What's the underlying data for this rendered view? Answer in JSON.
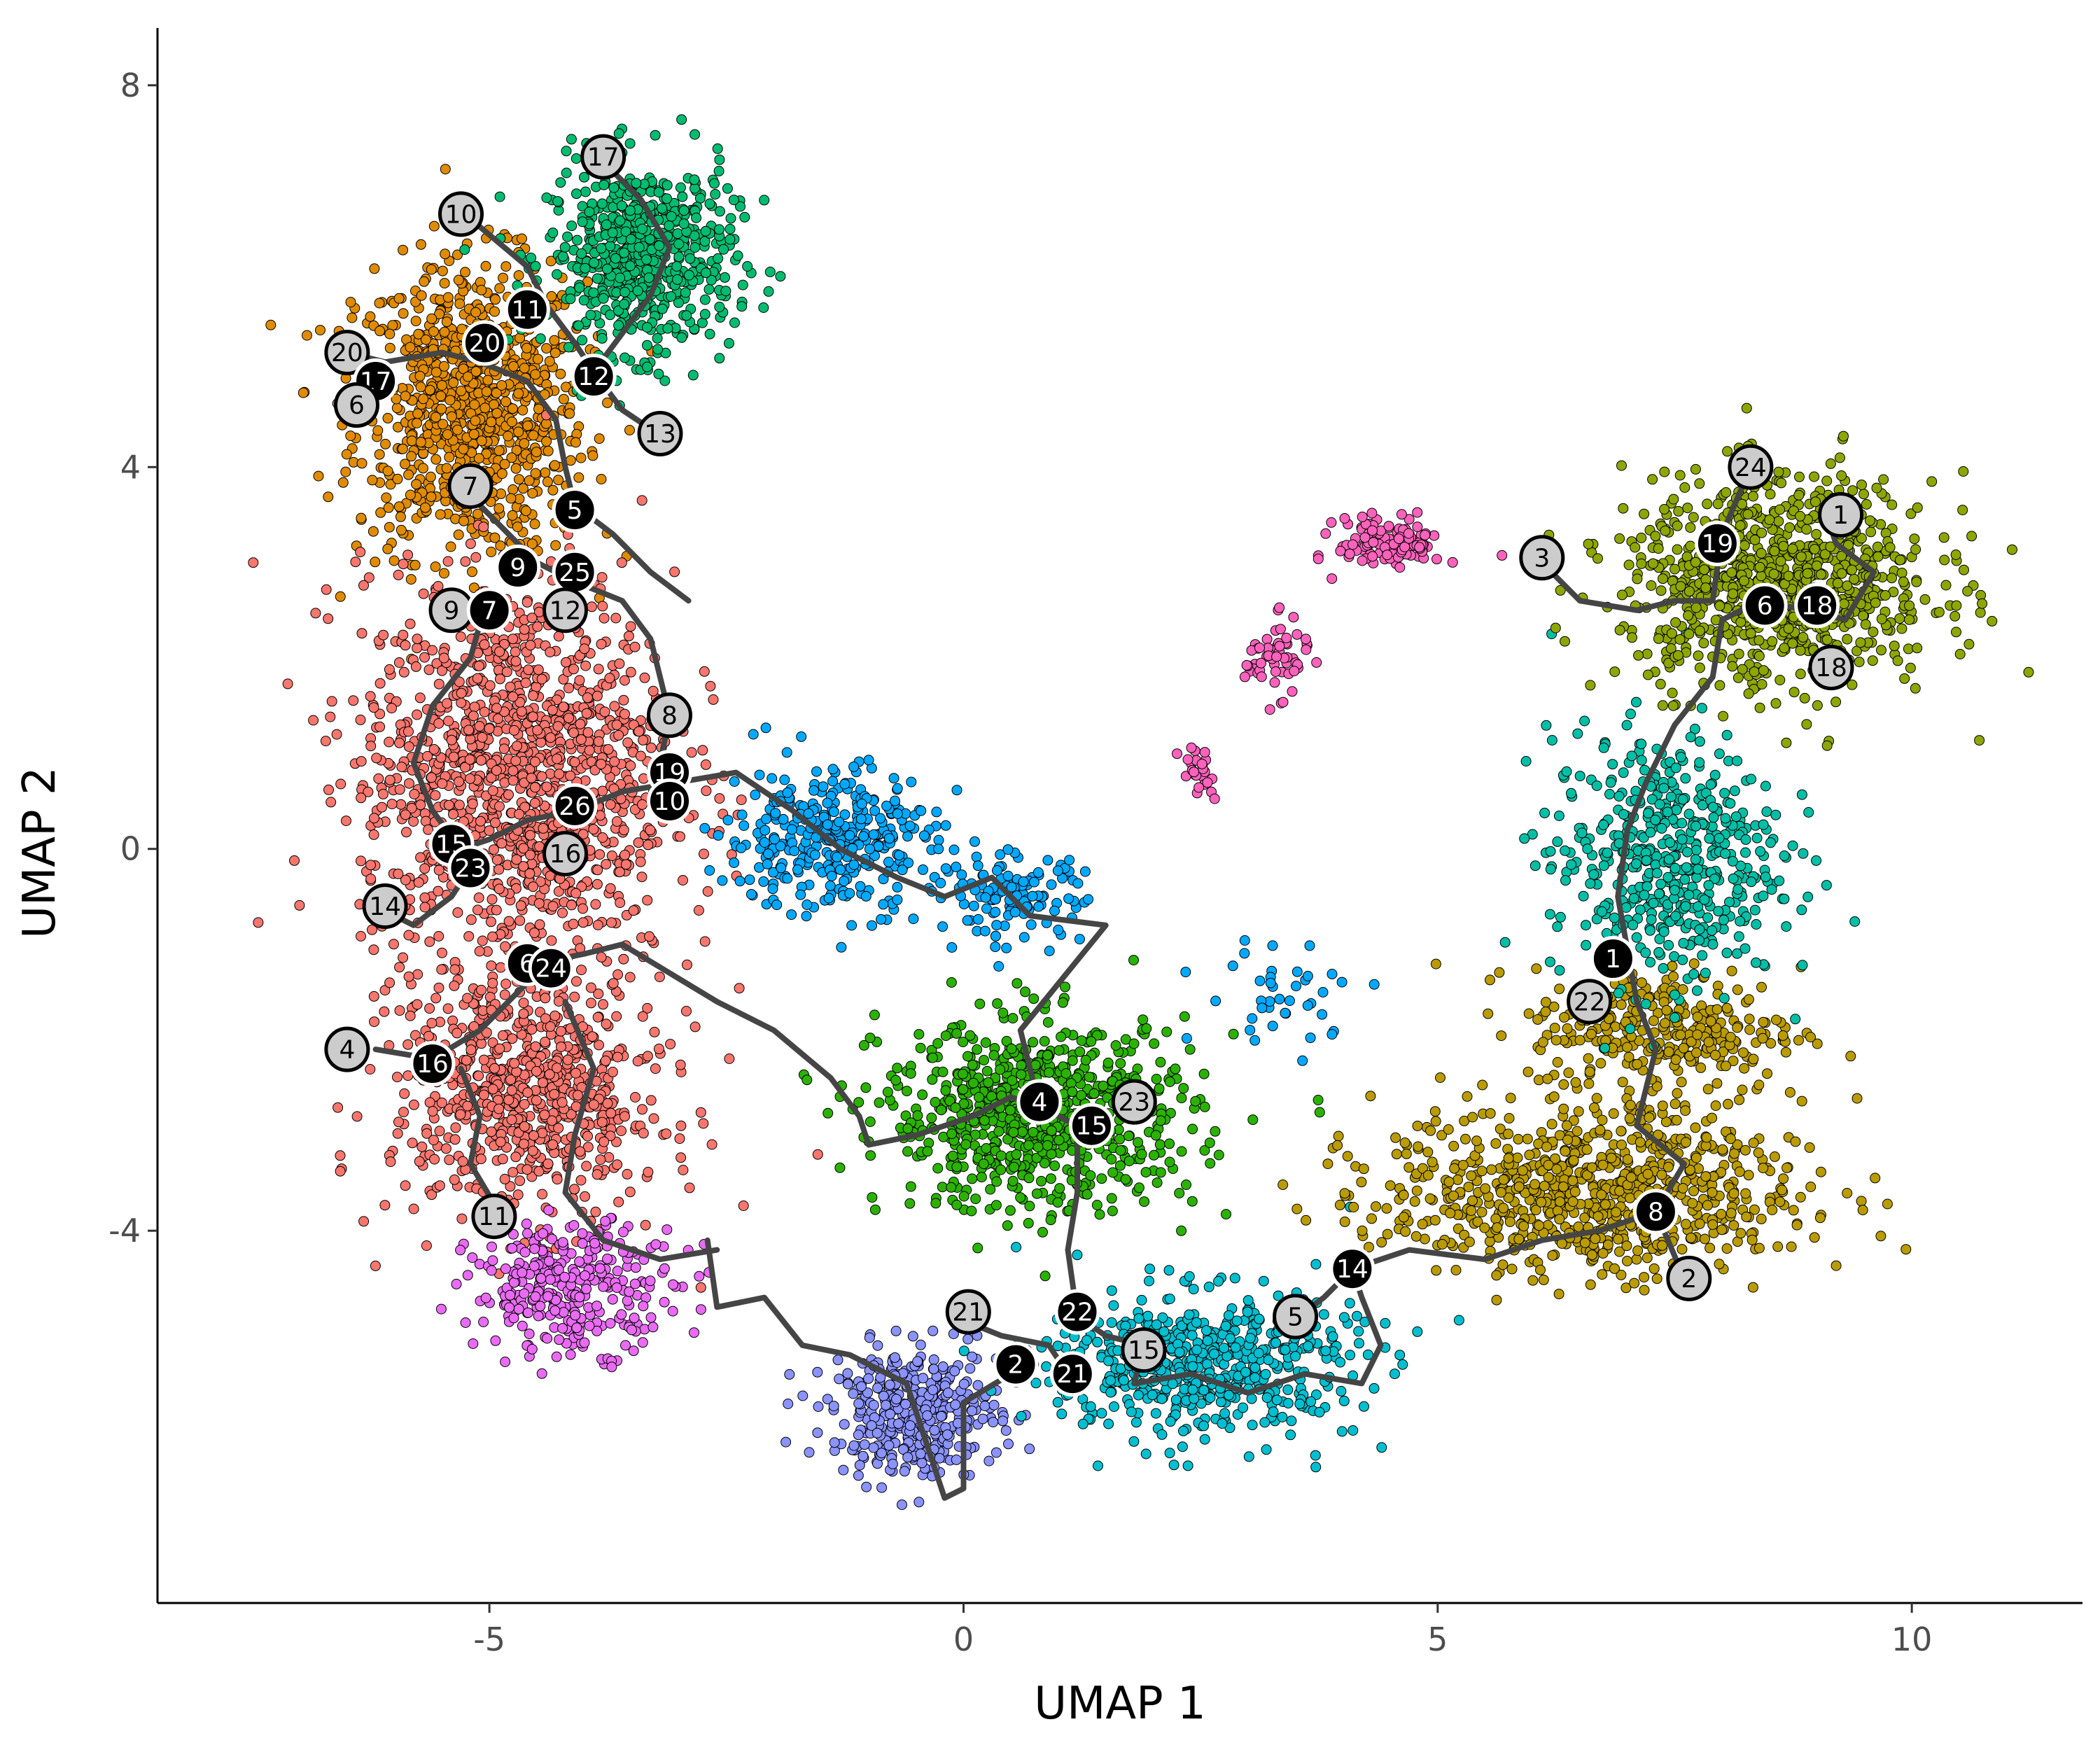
{
  "chart_data": {
    "type": "scatter",
    "title": "",
    "xlabel": "UMAP 1",
    "ylabel": "UMAP 2",
    "xlim": [
      -8.5,
      11.8
    ],
    "ylim": [
      -7.9,
      8.6
    ],
    "x_ticks": [
      -5,
      0,
      5,
      10
    ],
    "x_tick_labels": [
      "-5",
      "0",
      "5",
      "10"
    ],
    "y_ticks": [
      -4,
      0,
      4,
      8
    ],
    "y_tick_labels": [
      "-4",
      "0",
      "4",
      "8"
    ],
    "grid": false,
    "legend": "none",
    "clusters": [
      {
        "color": "#E08B00",
        "center": [
          -5.2,
          4.6
        ],
        "spread": [
          1.1,
          1.4
        ],
        "n": 900
      },
      {
        "color": "#00BC70",
        "center": [
          -3.4,
          6.2
        ],
        "spread": [
          0.9,
          0.9
        ],
        "n": 600
      },
      {
        "color": "#F8766D",
        "center": [
          -4.7,
          0.8
        ],
        "spread": [
          1.5,
          1.9
        ],
        "n": 1300
      },
      {
        "color": "#F8766D",
        "center": [
          -4.6,
          -2.6
        ],
        "spread": [
          1.3,
          1.2
        ],
        "n": 700
      },
      {
        "color": "#E96BF3",
        "center": [
          -4.1,
          -4.6
        ],
        "spread": [
          1.0,
          0.6
        ],
        "n": 300
      },
      {
        "color": "#00A9FF",
        "center": [
          -1.4,
          0.1
        ],
        "spread": [
          1.0,
          0.7
        ],
        "n": 350
      },
      {
        "color": "#00A9FF",
        "center": [
          0.5,
          -0.5
        ],
        "spread": [
          0.7,
          0.4
        ],
        "n": 120
      },
      {
        "color": "#00A9FF",
        "center": [
          3.4,
          -1.5
        ],
        "spread": [
          0.8,
          0.5
        ],
        "n": 40
      },
      {
        "color": "#2BB200",
        "center": [
          0.8,
          -2.8
        ],
        "spread": [
          1.5,
          0.9
        ],
        "n": 750
      },
      {
        "color": "#8B93FF",
        "center": [
          -0.5,
          -5.9
        ],
        "spread": [
          0.8,
          0.6
        ],
        "n": 380
      },
      {
        "color": "#00BFD0",
        "center": [
          2.5,
          -5.4
        ],
        "spread": [
          1.5,
          0.7
        ],
        "n": 550
      },
      {
        "color": "#BA9B00",
        "center": [
          6.6,
          -3.6
        ],
        "spread": [
          2.0,
          0.8
        ],
        "n": 800
      },
      {
        "color": "#BA9B00",
        "center": [
          7.4,
          -1.9
        ],
        "spread": [
          1.3,
          0.6
        ],
        "n": 300
      },
      {
        "color": "#00BFA6",
        "center": [
          7.4,
          -0.1
        ],
        "spread": [
          1.1,
          1.2
        ],
        "n": 500
      },
      {
        "color": "#8EA600",
        "center": [
          8.6,
          2.8
        ],
        "spread": [
          1.5,
          1.0
        ],
        "n": 900
      },
      {
        "color": "#FF62BC",
        "center": [
          4.5,
          3.2
        ],
        "spread": [
          0.5,
          0.25
        ],
        "n": 120
      },
      {
        "color": "#FF62BC",
        "center": [
          3.3,
          2.0
        ],
        "spread": [
          0.3,
          0.35
        ],
        "n": 60
      },
      {
        "color": "#FF62BC",
        "center": [
          2.5,
          0.8
        ],
        "spread": [
          0.2,
          0.3
        ],
        "n": 25
      }
    ],
    "trajectory": [
      [
        [
          -5.2,
          6.6
        ],
        [
          -4.6,
          6.1
        ],
        [
          -4.4,
          5.7
        ],
        [
          -4.1,
          5.3
        ],
        [
          -3.9,
          5.0
        ],
        [
          -3.6,
          4.6
        ],
        [
          -3.3,
          4.4
        ]
      ],
      [
        [
          -3.8,
          7.2
        ],
        [
          -3.4,
          6.8
        ],
        [
          -3.1,
          6.3
        ],
        [
          -3.3,
          5.8
        ],
        [
          -3.6,
          5.4
        ],
        [
          -3.9,
          5.0
        ]
      ],
      [
        [
          -6.5,
          5.2
        ],
        [
          -6.1,
          5.1
        ],
        [
          -5.5,
          5.2
        ],
        [
          -5.1,
          5.1
        ],
        [
          -4.6,
          4.9
        ],
        [
          -4.3,
          4.5
        ],
        [
          -4.2,
          4.0
        ],
        [
          -4.1,
          3.6
        ]
      ],
      [
        [
          -5.3,
          3.8
        ],
        [
          -4.9,
          3.4
        ],
        [
          -4.5,
          3.0
        ],
        [
          -4.1,
          2.8
        ],
        [
          -3.6,
          2.6
        ],
        [
          -3.3,
          2.2
        ],
        [
          -3.2,
          1.8
        ],
        [
          -3.1,
          1.4
        ],
        [
          -3.2,
          0.9
        ],
        [
          -3.0,
          0.6
        ]
      ],
      [
        [
          -4.1,
          3.6
        ],
        [
          -3.7,
          3.3
        ],
        [
          -3.3,
          2.9
        ],
        [
          -2.9,
          2.6
        ]
      ],
      [
        [
          -5.0,
          2.7
        ],
        [
          -5.2,
          2.0
        ],
        [
          -5.6,
          1.5
        ],
        [
          -5.8,
          0.9
        ],
        [
          -5.6,
          0.4
        ],
        [
          -5.3,
          0.0
        ]
      ],
      [
        [
          -6.2,
          -0.6
        ],
        [
          -5.8,
          -0.8
        ],
        [
          -5.4,
          -0.5
        ],
        [
          -5.2,
          -0.2
        ]
      ],
      [
        [
          -5.3,
          0.0
        ],
        [
          -5.0,
          0.1
        ],
        [
          -4.6,
          0.3
        ],
        [
          -4.1,
          0.4
        ],
        [
          -3.6,
          0.6
        ],
        [
          -3.0,
          0.7
        ],
        [
          -2.4,
          0.8
        ],
        [
          -1.8,
          0.4
        ],
        [
          -1.3,
          0.0
        ],
        [
          -0.7,
          -0.3
        ],
        [
          -0.2,
          -0.5
        ],
        [
          0.3,
          -0.3
        ],
        [
          0.7,
          -0.7
        ],
        [
          1.5,
          -0.8
        ],
        [
          0.6,
          -1.9
        ],
        [
          0.8,
          -2.7
        ]
      ],
      [
        [
          -4.5,
          -1.2
        ],
        [
          -4.0,
          -1.1
        ],
        [
          -3.6,
          -1.0
        ],
        [
          -3.1,
          -1.3
        ],
        [
          -2.6,
          -1.6
        ],
        [
          -2.0,
          -1.9
        ],
        [
          -1.4,
          -2.4
        ],
        [
          -1.1,
          -2.8
        ],
        [
          -1.0,
          -3.1
        ],
        [
          -0.5,
          -3.0
        ],
        [
          0.1,
          -2.8
        ],
        [
          0.5,
          -2.6
        ],
        [
          0.8,
          -2.7
        ]
      ],
      [
        [
          -4.5,
          -1.3
        ],
        [
          -4.8,
          -1.6
        ],
        [
          -5.1,
          -1.9
        ],
        [
          -5.6,
          -2.2
        ],
        [
          -6.2,
          -2.1
        ]
      ],
      [
        [
          -4.2,
          -1.6
        ],
        [
          -3.9,
          -2.3
        ],
        [
          -4.1,
          -3.0
        ],
        [
          -4.2,
          -3.6
        ],
        [
          -3.8,
          -4.1
        ],
        [
          -3.2,
          -4.3
        ],
        [
          -2.6,
          -4.2
        ]
      ],
      [
        [
          -5.3,
          -2.3
        ],
        [
          -5.1,
          -2.8
        ],
        [
          -5.2,
          -3.3
        ],
        [
          -4.9,
          -3.8
        ]
      ],
      [
        [
          -2.7,
          -4.1
        ],
        [
          -2.6,
          -4.8
        ],
        [
          -2.1,
          -4.7
        ],
        [
          -1.7,
          -5.2
        ],
        [
          -1.2,
          -5.3
        ],
        [
          -0.6,
          -5.6
        ],
        [
          -0.4,
          -6.2
        ],
        [
          -0.2,
          -6.8
        ],
        [
          0.0,
          -6.7
        ],
        [
          0.0,
          -5.8
        ],
        [
          0.5,
          -5.5
        ]
      ],
      [
        [
          -0.1,
          -4.9
        ],
        [
          0.4,
          -5.1
        ],
        [
          0.9,
          -5.2
        ],
        [
          1.1,
          -5.5
        ]
      ],
      [
        [
          0.8,
          -2.7
        ],
        [
          1.2,
          -2.9
        ],
        [
          1.2,
          -3.6
        ],
        [
          1.1,
          -4.2
        ],
        [
          1.2,
          -4.9
        ],
        [
          1.5,
          -5.1
        ],
        [
          1.9,
          -5.2
        ],
        [
          1.8,
          -5.6
        ],
        [
          2.4,
          -5.5
        ],
        [
          3.0,
          -5.7
        ],
        [
          3.6,
          -5.5
        ],
        [
          4.2,
          -5.6
        ],
        [
          4.4,
          -5.2
        ],
        [
          4.2,
          -4.7
        ],
        [
          4.1,
          -4.4
        ],
        [
          4.7,
          -4.2
        ],
        [
          5.5,
          -4.3
        ],
        [
          6.1,
          -4.1
        ],
        [
          6.7,
          -4.0
        ],
        [
          7.3,
          -3.8
        ],
        [
          7.6,
          -3.3
        ],
        [
          7.1,
          -2.9
        ],
        [
          7.3,
          -2.1
        ],
        [
          7.1,
          -1.6
        ],
        [
          6.9,
          -0.5
        ],
        [
          7.0,
          0.2
        ],
        [
          7.2,
          0.7
        ],
        [
          7.5,
          1.3
        ],
        [
          7.9,
          1.8
        ],
        [
          8.0,
          2.4
        ],
        [
          8.4,
          2.6
        ],
        [
          8.9,
          2.5
        ],
        [
          9.3,
          2.4
        ],
        [
          9.6,
          2.9
        ],
        [
          9.2,
          3.2
        ],
        [
          9.1,
          3.5
        ]
      ],
      [
        [
          6.1,
          3.0
        ],
        [
          6.5,
          2.6
        ],
        [
          7.1,
          2.5
        ],
        [
          7.5,
          2.6
        ],
        [
          7.9,
          2.6
        ],
        [
          8.0,
          3.3
        ],
        [
          8.3,
          4.0
        ]
      ],
      [
        [
          3.4,
          -5.0
        ],
        [
          3.8,
          -4.7
        ],
        [
          4.1,
          -4.4
        ]
      ],
      [
        [
          7.3,
          -3.8
        ],
        [
          7.6,
          -4.5
        ]
      ]
    ],
    "trajectory_color": "#454545",
    "nodes": [
      {
        "label": "17",
        "x": -3.8,
        "y": 7.25,
        "fill": "#cccccc",
        "text": "#000000"
      },
      {
        "label": "10",
        "x": -5.3,
        "y": 6.65,
        "fill": "#cccccc",
        "text": "#000000"
      },
      {
        "label": "11",
        "x": -4.6,
        "y": 5.65,
        "fill": "#000000",
        "text": "#ffffff"
      },
      {
        "label": "20",
        "x": -5.05,
        "y": 5.3,
        "fill": "#000000",
        "text": "#ffffff"
      },
      {
        "label": "20",
        "x": -6.5,
        "y": 5.2,
        "fill": "#cccccc",
        "text": "#000000"
      },
      {
        "label": "17",
        "x": -6.2,
        "y": 4.9,
        "fill": "#000000",
        "text": "#ffffff"
      },
      {
        "label": "6",
        "x": -6.4,
        "y": 4.65,
        "fill": "#cccccc",
        "text": "#000000"
      },
      {
        "label": "12",
        "x": -3.9,
        "y": 4.95,
        "fill": "#000000",
        "text": "#ffffff"
      },
      {
        "label": "13",
        "x": -3.2,
        "y": 4.35,
        "fill": "#cccccc",
        "text": "#000000"
      },
      {
        "label": "7",
        "x": -5.2,
        "y": 3.8,
        "fill": "#cccccc",
        "text": "#000000"
      },
      {
        "label": "5",
        "x": -4.1,
        "y": 3.55,
        "fill": "#000000",
        "text": "#ffffff"
      },
      {
        "label": "9",
        "x": -4.7,
        "y": 2.95,
        "fill": "#000000",
        "text": "#ffffff"
      },
      {
        "label": "25",
        "x": -4.1,
        "y": 2.9,
        "fill": "#000000",
        "text": "#ffffff"
      },
      {
        "label": "9",
        "x": -5.4,
        "y": 2.5,
        "fill": "#cccccc",
        "text": "#000000"
      },
      {
        "label": "7",
        "x": -5.0,
        "y": 2.5,
        "fill": "#000000",
        "text": "#ffffff"
      },
      {
        "label": "12",
        "x": -4.2,
        "y": 2.5,
        "fill": "#cccccc",
        "text": "#000000"
      },
      {
        "label": "8",
        "x": -3.1,
        "y": 1.4,
        "fill": "#cccccc",
        "text": "#000000"
      },
      {
        "label": "19",
        "x": -3.1,
        "y": 0.8,
        "fill": "#000000",
        "text": "#ffffff"
      },
      {
        "label": "10",
        "x": -3.1,
        "y": 0.5,
        "fill": "#000000",
        "text": "#ffffff"
      },
      {
        "label": "26",
        "x": -4.1,
        "y": 0.45,
        "fill": "#000000",
        "text": "#ffffff"
      },
      {
        "label": "16",
        "x": -4.2,
        "y": -0.05,
        "fill": "#cccccc",
        "text": "#000000"
      },
      {
        "label": "15",
        "x": -5.4,
        "y": 0.05,
        "fill": "#000000",
        "text": "#ffffff"
      },
      {
        "label": "23",
        "x": -5.2,
        "y": -0.2,
        "fill": "#000000",
        "text": "#ffffff"
      },
      {
        "label": "14",
        "x": -6.1,
        "y": -0.6,
        "fill": "#cccccc",
        "text": "#000000"
      },
      {
        "label": "6",
        "x": -4.6,
        "y": -1.2,
        "fill": "#000000",
        "text": "#ffffff"
      },
      {
        "label": "24",
        "x": -4.35,
        "y": -1.25,
        "fill": "#000000",
        "text": "#ffffff"
      },
      {
        "label": "4",
        "x": -6.5,
        "y": -2.1,
        "fill": "#cccccc",
        "text": "#000000"
      },
      {
        "label": "16",
        "x": -5.6,
        "y": -2.25,
        "fill": "#000000",
        "text": "#ffffff"
      },
      {
        "label": "11",
        "x": -4.95,
        "y": -3.85,
        "fill": "#cccccc",
        "text": "#000000"
      },
      {
        "label": "4",
        "x": 0.8,
        "y": -2.65,
        "fill": "#000000",
        "text": "#ffffff"
      },
      {
        "label": "15",
        "x": 1.35,
        "y": -2.9,
        "fill": "#000000",
        "text": "#ffffff"
      },
      {
        "label": "23",
        "x": 1.8,
        "y": -2.65,
        "fill": "#cccccc",
        "text": "#000000"
      },
      {
        "label": "21",
        "x": 0.05,
        "y": -4.85,
        "fill": "#cccccc",
        "text": "#000000"
      },
      {
        "label": "22",
        "x": 1.2,
        "y": -4.85,
        "fill": "#000000",
        "text": "#ffffff"
      },
      {
        "label": "2",
        "x": 0.55,
        "y": -5.4,
        "fill": "#000000",
        "text": "#ffffff"
      },
      {
        "label": "21",
        "x": 1.15,
        "y": -5.5,
        "fill": "#000000",
        "text": "#ffffff"
      },
      {
        "label": "15",
        "x": 1.9,
        "y": -5.25,
        "fill": "#cccccc",
        "text": "#000000"
      },
      {
        "label": "5",
        "x": 3.5,
        "y": -4.9,
        "fill": "#cccccc",
        "text": "#000000"
      },
      {
        "label": "14",
        "x": 4.1,
        "y": -4.4,
        "fill": "#000000",
        "text": "#ffffff"
      },
      {
        "label": "8",
        "x": 7.3,
        "y": -3.8,
        "fill": "#000000",
        "text": "#ffffff"
      },
      {
        "label": "2",
        "x": 7.65,
        "y": -4.5,
        "fill": "#cccccc",
        "text": "#000000"
      },
      {
        "label": "1",
        "x": 6.85,
        "y": -1.15,
        "fill": "#000000",
        "text": "#ffffff"
      },
      {
        "label": "22",
        "x": 6.6,
        "y": -1.6,
        "fill": "#cccccc",
        "text": "#000000"
      },
      {
        "label": "3",
        "x": 6.1,
        "y": 3.05,
        "fill": "#cccccc",
        "text": "#000000"
      },
      {
        "label": "24",
        "x": 8.3,
        "y": 4.0,
        "fill": "#cccccc",
        "text": "#000000"
      },
      {
        "label": "1",
        "x": 9.25,
        "y": 3.5,
        "fill": "#cccccc",
        "text": "#000000"
      },
      {
        "label": "19",
        "x": 7.95,
        "y": 3.2,
        "fill": "#000000",
        "text": "#ffffff"
      },
      {
        "label": "6",
        "x": 8.45,
        "y": 2.55,
        "fill": "#000000",
        "text": "#ffffff"
      },
      {
        "label": "18",
        "x": 9.0,
        "y": 2.55,
        "fill": "#000000",
        "text": "#ffffff"
      },
      {
        "label": "18",
        "x": 9.15,
        "y": 1.9,
        "fill": "#cccccc",
        "text": "#000000"
      }
    ]
  }
}
